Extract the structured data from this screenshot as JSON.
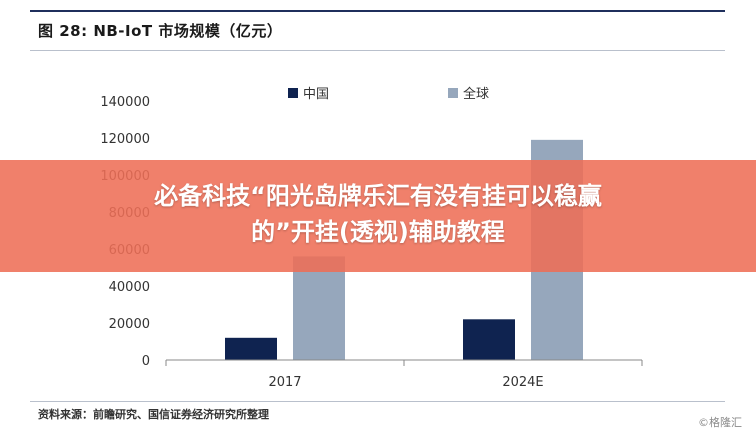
{
  "figure": {
    "title": "图 28: NB-IoT 市场规模（亿元）",
    "source": "资料来源：前瞻研究、国信证券经济研究所整理",
    "watermark": "©格隆汇"
  },
  "overlay": {
    "line1": "必备科技“阳光岛牌乐汇有没有挂可以稳赢",
    "line2": "的”开挂(透视)辅助教程",
    "color": "#ee6e56"
  },
  "chart_data": {
    "type": "bar",
    "categories": [
      "2017",
      "2024E"
    ],
    "series": [
      {
        "name": "中国",
        "values": [
          12000,
          22000
        ],
        "color": "#0f2350"
      },
      {
        "name": "全球",
        "values": [
          56000,
          119000
        ],
        "color": "#96a7bc"
      }
    ],
    "ylim": [
      0,
      140000
    ],
    "yticks": [
      "140000",
      "120000",
      "100000",
      "80000",
      "60000",
      "40000",
      "20000",
      "0"
    ],
    "ytick_values": [
      140000,
      120000,
      100000,
      80000,
      60000,
      40000,
      20000,
      0
    ],
    "xlabel": "",
    "ylabel": "",
    "legend": "top",
    "grid": false
  }
}
